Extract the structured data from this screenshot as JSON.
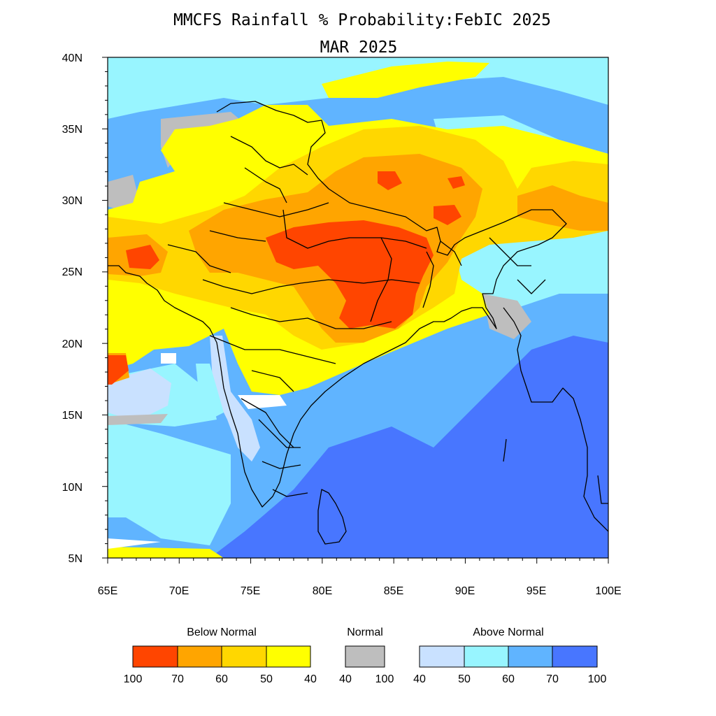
{
  "title": "MMCFS Rainfall % Probability:FebIC 2025",
  "subtitle": "MAR 2025",
  "axes": {
    "x_ticks": [
      "65E",
      "70E",
      "75E",
      "80E",
      "85E",
      "90E",
      "95E",
      "100E"
    ],
    "y_ticks": [
      "40N",
      "35N",
      "30N",
      "25N",
      "20N",
      "15N",
      "10N",
      "5N"
    ],
    "lon_range": [
      65,
      100
    ],
    "lat_range": [
      5,
      40
    ]
  },
  "colors": {
    "below_100_70": "#ff4500",
    "below_70_60": "#ffa500",
    "below_60_50": "#ffd700",
    "below_50_40": "#ffff00",
    "normal": "#bebebe",
    "above_40_50": "#c9e1ff",
    "above_50_60": "#98f5ff",
    "above_60_70": "#60b4ff",
    "above_70_100": "#4876ff"
  },
  "legend": {
    "below": {
      "title": "Below Normal",
      "labels": [
        "100",
        "70",
        "60",
        "50",
        "40"
      ],
      "colors": [
        "#ff4500",
        "#ffa500",
        "#ffd700",
        "#ffff00"
      ]
    },
    "normal": {
      "title": "Normal",
      "labels": [
        "40",
        "100"
      ],
      "colors": [
        "#bebebe"
      ]
    },
    "above": {
      "title": "Above Normal",
      "labels": [
        "40",
        "50",
        "60",
        "70",
        "100"
      ],
      "colors": [
        "#c9e1ff",
        "#98f5ff",
        "#60b4ff",
        "#4876ff"
      ]
    }
  }
}
